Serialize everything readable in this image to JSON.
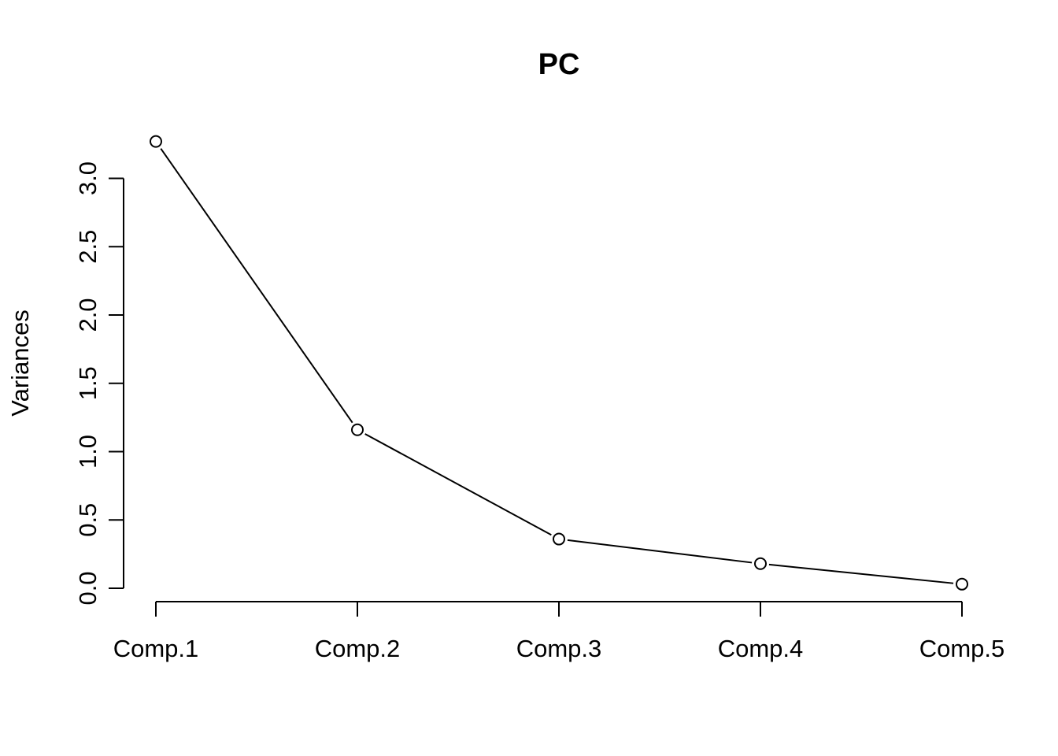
{
  "chart_data": {
    "type": "line",
    "title": "PC",
    "xlabel": "",
    "ylabel": "Variances",
    "categories": [
      "Comp.1",
      "Comp.2",
      "Comp.3",
      "Comp.4",
      "Comp.5"
    ],
    "values": [
      3.27,
      1.16,
      0.36,
      0.18,
      0.03
    ],
    "yticks": [
      "0.0",
      "0.5",
      "1.0",
      "1.5",
      "2.0",
      "2.5",
      "3.0"
    ],
    "ylim": [
      0,
      3.0
    ],
    "grid": false,
    "markers": "open-circle",
    "colors": {
      "line": "#000000",
      "marker_fill": "#ffffff",
      "background": "#ffffff"
    }
  }
}
